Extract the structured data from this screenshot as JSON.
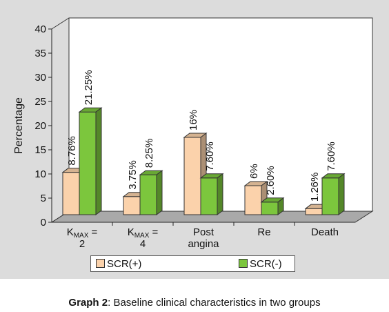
{
  "chart_data": {
    "type": "bar",
    "ylabel": "Percentage",
    "ylim": [
      0,
      40
    ],
    "yticks": [
      "0",
      "5",
      "10",
      "15",
      "20",
      "25",
      "30",
      "35",
      "40"
    ],
    "categories": [
      {
        "lines": [
          [
            "K",
            "MAX",
            " ="
          ],
          [
            "2"
          ]
        ]
      },
      {
        "lines": [
          [
            "K",
            "MAX",
            " ="
          ],
          [
            "4"
          ]
        ]
      },
      {
        "lines": [
          [
            "Post"
          ],
          [
            "angina"
          ]
        ]
      },
      {
        "lines": [
          [
            "Re"
          ]
        ]
      },
      {
        "lines": [
          [
            "Death"
          ]
        ]
      }
    ],
    "series": [
      {
        "name": "SCR(+)",
        "color": "#fbd2ab",
        "values": [
          8.76,
          3.75,
          16,
          6,
          1.26
        ],
        "labels": [
          "8.76%",
          "3.75%",
          "16%",
          "6%",
          "1.26%"
        ]
      },
      {
        "name": "SCR(-)",
        "color": "#7cc63d",
        "values": [
          21.25,
          8.25,
          7.6,
          2.6,
          7.6
        ],
        "labels": [
          "21.25%",
          "8.25%",
          "7.60%",
          "2.60%",
          "7.60%"
        ]
      }
    ],
    "legend_position": "bottom"
  },
  "caption": {
    "bold": "Graph 2",
    "text": ": Baseline clinical characteristics in two groups"
  }
}
